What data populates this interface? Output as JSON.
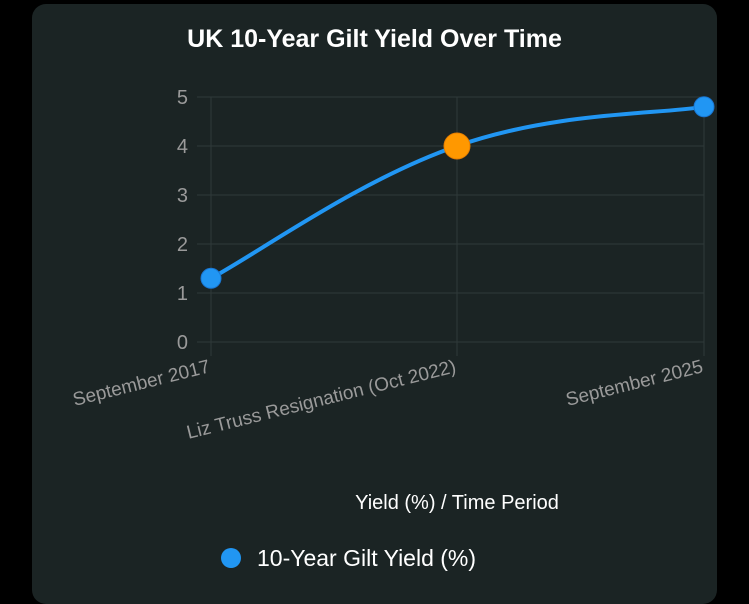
{
  "chart_data": {
    "type": "line",
    "title": "UK 10-Year Gilt Yield Over Time",
    "xlabel": "Yield (%) / Time Period",
    "ylabel": "",
    "categories": [
      "September 2017",
      "Liz Truss Resignation (Oct 2022)",
      "September 2025"
    ],
    "series": [
      {
        "name": "10-Year Gilt Yield (%)",
        "values": [
          1.3,
          4.0,
          4.8
        ],
        "color": "#2196f3",
        "highlight_index": 1,
        "highlight_color": "#ff9800"
      }
    ],
    "ylim": [
      0,
      5
    ],
    "yticks": [
      0,
      1,
      2,
      3,
      4,
      5
    ],
    "grid": true,
    "legend_position": "bottom"
  },
  "colors": {
    "background": "#1b2424",
    "grid": "#2f3a3a",
    "tick_text": "#9a9a9a",
    "text": "#ffffff"
  }
}
